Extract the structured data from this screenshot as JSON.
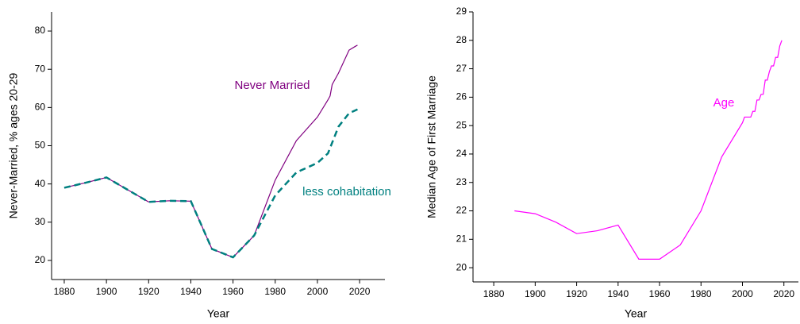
{
  "chart_data": [
    {
      "type": "line",
      "x_label": "Year",
      "y_label": "Never-Married, % ages 20-29",
      "xlim": [
        1874,
        2032
      ],
      "ylim": [
        15,
        85
      ],
      "xticks": [
        1880,
        1900,
        1920,
        1940,
        1960,
        1980,
        2000,
        2020
      ],
      "yticks": [
        20,
        30,
        40,
        50,
        60,
        70,
        80
      ],
      "series": [
        {
          "name": "Never Married",
          "color": "#800080",
          "dash": false,
          "x": [
            1880,
            1890,
            1900,
            1910,
            1920,
            1930,
            1940,
            1950,
            1960,
            1970,
            1980,
            1990,
            2000,
            2005,
            2006,
            2007,
            2010,
            2015,
            2018,
            2019
          ],
          "values": [
            39,
            40.3,
            41.7,
            38.5,
            35.3,
            35.6,
            35.5,
            23,
            20.8,
            26.5,
            41,
            51.3,
            57.5,
            62,
            63,
            66,
            69,
            75,
            76,
            76.3
          ]
        },
        {
          "name": "less cohabitation",
          "color": "#008080",
          "dash": true,
          "x": [
            1880,
            1890,
            1900,
            1910,
            1920,
            1930,
            1940,
            1950,
            1960,
            1970,
            1980,
            1990,
            2000,
            2005,
            2010,
            2015,
            2019
          ],
          "values": [
            39,
            40.3,
            41.7,
            38.5,
            35.3,
            35.6,
            35.5,
            23,
            20.8,
            26.5,
            37,
            43,
            45.5,
            48,
            55,
            58.5,
            59.5
          ]
        }
      ]
    },
    {
      "type": "line",
      "x_label": "Year",
      "y_label": "Median Age of First Marriage",
      "xlim": [
        1870,
        2027
      ],
      "ylim": [
        19.5,
        29
      ],
      "xticks": [
        1880,
        1900,
        1920,
        1940,
        1960,
        1980,
        2000,
        2020
      ],
      "yticks": [
        20,
        21,
        22,
        23,
        24,
        25,
        26,
        27,
        28,
        29
      ],
      "series": [
        {
          "name": "Age",
          "color": "#ff00ff",
          "dash": false,
          "x": [
            1890,
            1900,
            1910,
            1920,
            1930,
            1940,
            1950,
            1960,
            1970,
            1980,
            1990,
            2000,
            2001,
            2004,
            2005,
            2006,
            2007,
            2008,
            2009,
            2010,
            2011,
            2012,
            2013,
            2014,
            2015,
            2016,
            2017,
            2018,
            2019
          ],
          "values": [
            22.0,
            21.9,
            21.6,
            21.2,
            21.3,
            21.5,
            20.3,
            20.3,
            20.8,
            22.0,
            23.9,
            25.1,
            25.3,
            25.3,
            25.5,
            25.5,
            25.9,
            25.9,
            26.1,
            26.1,
            26.6,
            26.6,
            26.9,
            27.1,
            27.1,
            27.4,
            27.4,
            27.8,
            28.0
          ]
        }
      ]
    }
  ]
}
